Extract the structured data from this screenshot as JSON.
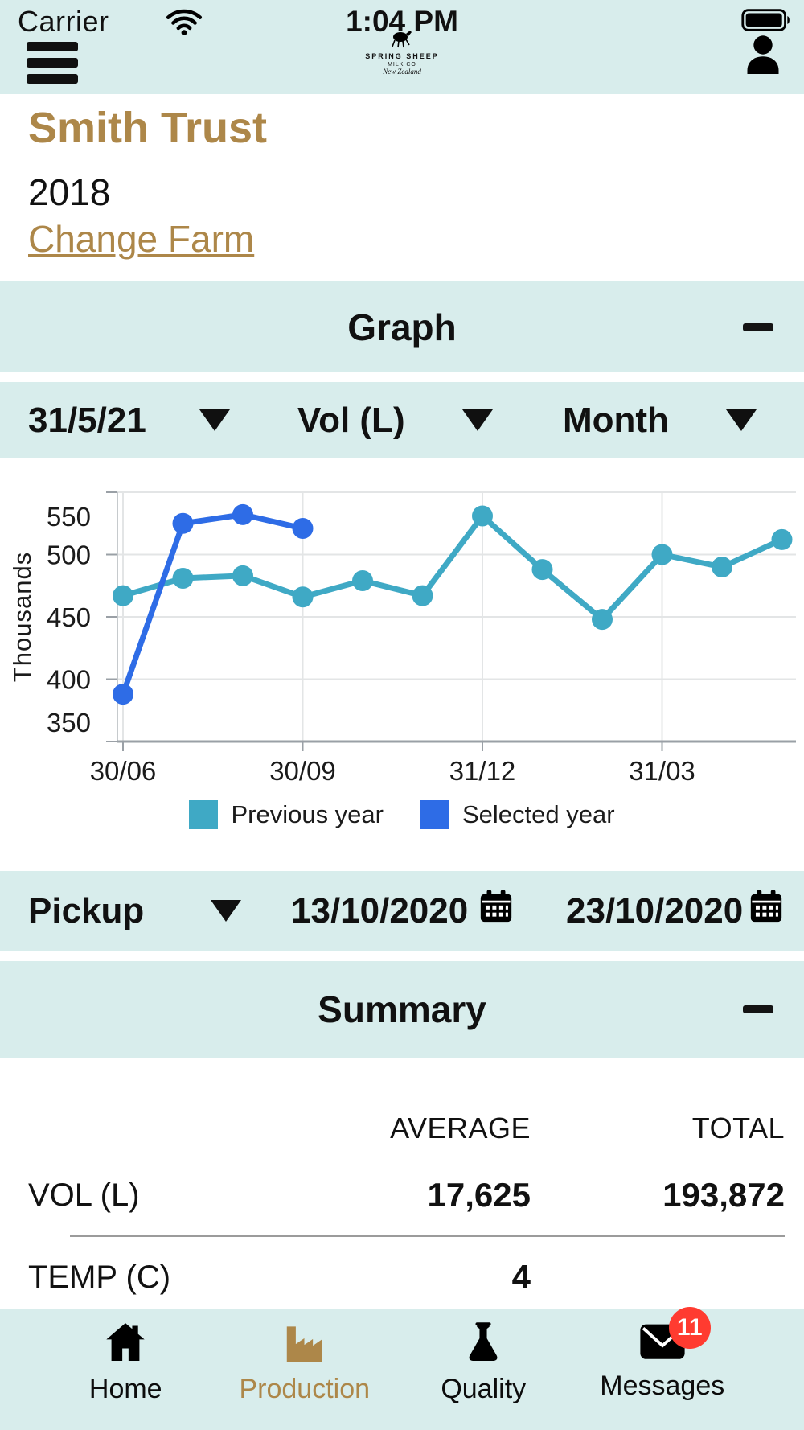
{
  "status_bar": {
    "carrier": "Carrier",
    "time": "1:04 PM"
  },
  "logo": {
    "line1": "SPRING SHEEP",
    "line2": "MILK CO",
    "line3": "New Zealand"
  },
  "farm": {
    "name": "Smith Trust",
    "year": "2018",
    "change_farm_label": "Change Farm"
  },
  "graph_section": {
    "title": "Graph"
  },
  "filters": {
    "date": "31/5/21",
    "metric": "Vol (L)",
    "interval": "Month"
  },
  "chart_data": {
    "type": "line",
    "ylabel": "Thousands",
    "ylim": [
      350,
      550
    ],
    "yticks": [
      350,
      400,
      450,
      500,
      550
    ],
    "x_tick_labels": [
      "30/06",
      "30/09",
      "31/12",
      "31/03"
    ],
    "x_tick_month_positions": [
      0,
      3,
      6,
      9
    ],
    "months_span": 12,
    "grid": true,
    "legend_position": "bottom",
    "series": [
      {
        "name": "Previous year",
        "color": "#3fa9c5",
        "values": [
          467,
          481,
          483,
          466,
          479,
          467,
          531,
          488,
          448,
          500,
          490,
          512
        ]
      },
      {
        "name": "Selected year",
        "color": "#2e6ce6",
        "values": [
          388,
          525,
          532,
          521
        ]
      }
    ]
  },
  "pickup": {
    "label": "Pickup",
    "date_from": "13/10/2020",
    "date_to": "23/10/2020"
  },
  "summary": {
    "title": "Summary",
    "columns": [
      "AVERAGE",
      "TOTAL"
    ],
    "rows": [
      {
        "label": "VOL (L)",
        "average": "17,625",
        "total": "193,872"
      },
      {
        "label": "TEMP (C)",
        "average": "4",
        "total": ""
      }
    ]
  },
  "tab_bar": {
    "items": [
      {
        "label": "Home",
        "active": false,
        "badge": ""
      },
      {
        "label": "Production",
        "active": true,
        "badge": ""
      },
      {
        "label": "Quality",
        "active": false,
        "badge": ""
      },
      {
        "label": "Messages",
        "active": false,
        "badge": "11"
      }
    ]
  },
  "colors": {
    "band_teal": "#d8edec",
    "accent_tan": "#ad8749",
    "series_previous": "#3fa9c5",
    "series_selected": "#2e6ce6",
    "badge_red": "#ff3b30"
  }
}
